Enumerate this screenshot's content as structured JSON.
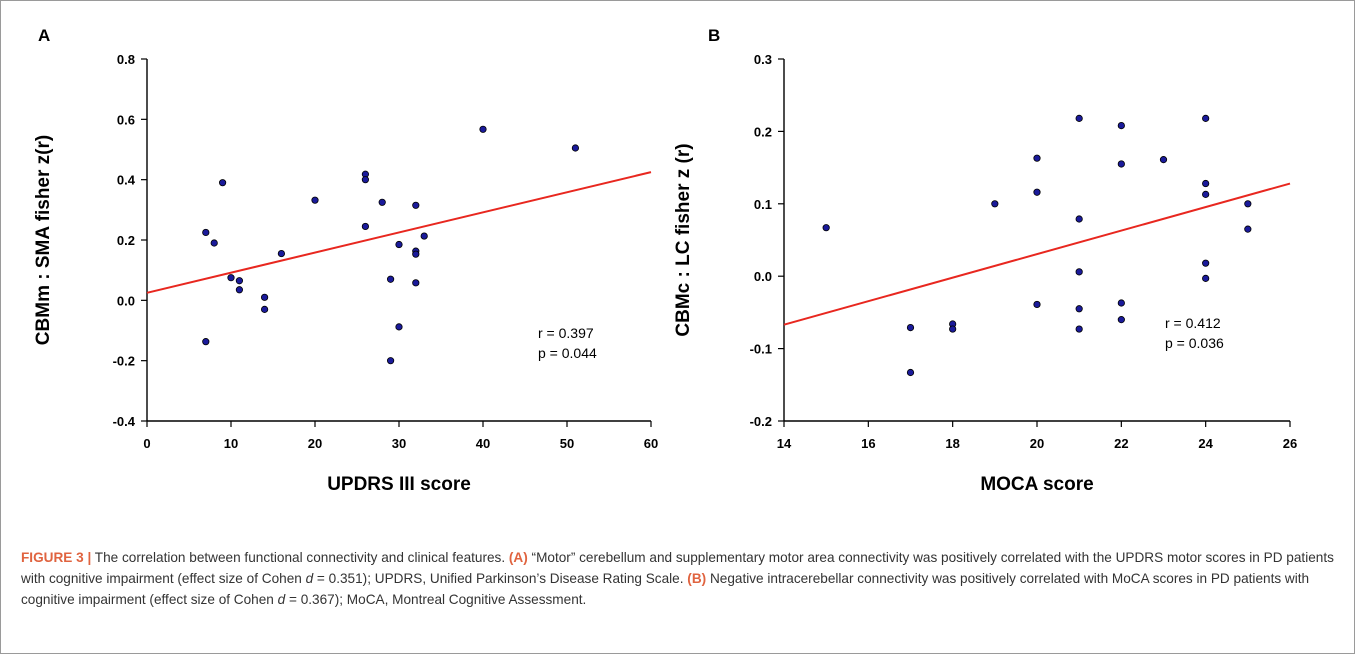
{
  "colors": {
    "point_fill": "#1a1a9a",
    "fit_line": "#e8271f",
    "caption_label": "#e0633f"
  },
  "chart_data": [
    {
      "type": "scatter",
      "panel_label": "A",
      "xlabel": "UPDRS III score",
      "ylabel": "CBMm : SMA fisher z(r)",
      "xlim": [
        0,
        60
      ],
      "ylim": [
        -0.4,
        0.8
      ],
      "xticks": [
        "0",
        "10",
        "20",
        "30",
        "40",
        "50",
        "60"
      ],
      "yticks": [
        "-0.4",
        "-0.2",
        "0.0",
        "0.2",
        "0.4",
        "0.6",
        "0.8"
      ],
      "points": [
        [
          7,
          0.225
        ],
        [
          7,
          -0.137
        ],
        [
          8,
          0.19
        ],
        [
          9,
          0.39
        ],
        [
          10,
          0.075
        ],
        [
          11,
          0.065
        ],
        [
          11,
          0.035
        ],
        [
          14,
          0.01
        ],
        [
          14,
          -0.03
        ],
        [
          16,
          0.155
        ],
        [
          20,
          0.332
        ],
        [
          26,
          0.418
        ],
        [
          26,
          0.4
        ],
        [
          26,
          0.245
        ],
        [
          28,
          0.325
        ],
        [
          29,
          0.07
        ],
        [
          29,
          -0.2
        ],
        [
          30,
          0.185
        ],
        [
          30,
          -0.088
        ],
        [
          32,
          0.315
        ],
        [
          32,
          0.163
        ],
        [
          32,
          0.153
        ],
        [
          32,
          0.058
        ],
        [
          33,
          0.213
        ],
        [
          40,
          0.567
        ],
        [
          51,
          0.505
        ]
      ],
      "fit_line": [
        [
          0,
          0.025
        ],
        [
          60,
          0.425
        ]
      ],
      "stats": {
        "r": "r  = 0.397",
        "p": "p = 0.044"
      }
    },
    {
      "type": "scatter",
      "panel_label": "B",
      "xlabel": "MOCA score",
      "ylabel": "CBMc : LC fisher z (r)",
      "xlim": [
        14,
        26
      ],
      "ylim": [
        -0.2,
        0.3
      ],
      "xticks": [
        "14",
        "16",
        "18",
        "20",
        "22",
        "24",
        "26"
      ],
      "yticks": [
        "-0.2",
        "-0.1",
        "0.0",
        "0.1",
        "0.2",
        "0.3"
      ],
      "points": [
        [
          15,
          0.067
        ],
        [
          17,
          -0.071
        ],
        [
          17,
          -0.133
        ],
        [
          18,
          -0.066
        ],
        [
          18,
          -0.073
        ],
        [
          19,
          0.1
        ],
        [
          20,
          0.163
        ],
        [
          20,
          0.116
        ],
        [
          20,
          -0.039
        ],
        [
          21,
          0.218
        ],
        [
          21,
          0.079
        ],
        [
          21,
          0.006
        ],
        [
          21,
          -0.045
        ],
        [
          21,
          -0.073
        ],
        [
          22,
          0.208
        ],
        [
          22,
          0.155
        ],
        [
          22,
          -0.037
        ],
        [
          22,
          -0.06
        ],
        [
          23,
          0.161
        ],
        [
          24,
          0.218
        ],
        [
          24,
          0.128
        ],
        [
          24,
          0.113
        ],
        [
          24,
          0.018
        ],
        [
          24,
          -0.003
        ],
        [
          25,
          0.1
        ],
        [
          25,
          0.065
        ]
      ],
      "fit_line": [
        [
          14,
          -0.067
        ],
        [
          26,
          0.128
        ]
      ],
      "stats": {
        "r": "r  = 0.412",
        "p": "p = 0.036"
      }
    }
  ],
  "caption": {
    "figure_label": "FIGURE 3 |",
    "figure_title": " The correlation between functional connectivity and clinical features. ",
    "a_label": "(A)",
    "a_text_1": " “Motor” cerebellum and supplementary motor area connectivity was positively correlated with the UPDRS motor scores in PD patients with cognitive impairment (effect size of Cohen ",
    "d_symbol": "d",
    "a_text_2": " = 0.351); UPDRS, Unified Parkinson’s Disease Rating Scale. ",
    "b_label": "(B)",
    "b_text_1": " Negative intracerebellar connectivity was positively correlated with MoCA scores in PD patients with cognitive impairment (effect size of Cohen ",
    "b_text_2": " = 0.367); MoCA, Montreal Cognitive Assessment."
  }
}
